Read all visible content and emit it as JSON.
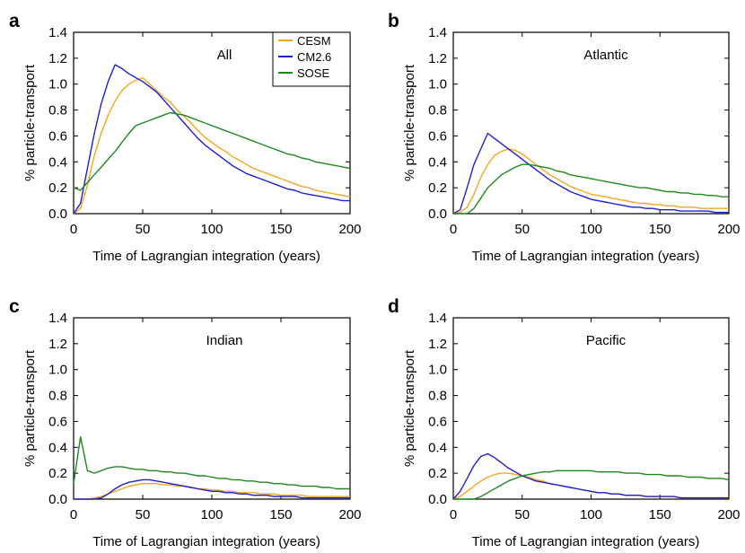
{
  "chart_data": [
    {
      "type": "line",
      "panel_letter": "a",
      "title": "All",
      "xlabel": "Time of Lagrangian integration (years)",
      "ylabel": "% particle-transport",
      "xlim": [
        0,
        200
      ],
      "ylim": [
        0,
        1.4
      ],
      "xticks": [
        0,
        50,
        100,
        150,
        200
      ],
      "yticks": [
        0.0,
        0.2,
        0.4,
        0.6,
        0.8,
        1.0,
        1.2,
        1.4
      ],
      "grid": false,
      "legend": "top-right",
      "x": [
        0,
        5,
        10,
        15,
        20,
        25,
        30,
        35,
        40,
        45,
        50,
        55,
        60,
        65,
        70,
        75,
        80,
        85,
        90,
        95,
        100,
        105,
        110,
        115,
        120,
        125,
        130,
        135,
        140,
        145,
        150,
        155,
        160,
        165,
        170,
        175,
        180,
        185,
        190,
        195,
        200
      ],
      "series": [
        {
          "name": "CESM",
          "color": "#f5a623",
          "values": [
            0.0,
            0.04,
            0.22,
            0.45,
            0.62,
            0.76,
            0.87,
            0.95,
            1.0,
            1.03,
            1.05,
            1.0,
            0.95,
            0.9,
            0.86,
            0.8,
            0.75,
            0.7,
            0.64,
            0.59,
            0.55,
            0.51,
            0.48,
            0.44,
            0.41,
            0.38,
            0.35,
            0.33,
            0.31,
            0.29,
            0.27,
            0.25,
            0.23,
            0.21,
            0.2,
            0.18,
            0.17,
            0.16,
            0.15,
            0.14,
            0.13
          ]
        },
        {
          "name": "CM2.6",
          "color": "#1f1fd0",
          "values": [
            0.0,
            0.08,
            0.35,
            0.62,
            0.85,
            1.02,
            1.15,
            1.12,
            1.08,
            1.05,
            1.02,
            0.98,
            0.94,
            0.88,
            0.82,
            0.76,
            0.7,
            0.64,
            0.58,
            0.53,
            0.49,
            0.45,
            0.41,
            0.37,
            0.34,
            0.31,
            0.29,
            0.27,
            0.25,
            0.23,
            0.21,
            0.19,
            0.18,
            0.16,
            0.15,
            0.14,
            0.13,
            0.12,
            0.11,
            0.1,
            0.1
          ]
        },
        {
          "name": "SOSE",
          "color": "#1e8a1e",
          "values": [
            0.2,
            0.18,
            0.24,
            0.3,
            0.36,
            0.42,
            0.48,
            0.55,
            0.62,
            0.68,
            0.7,
            0.72,
            0.74,
            0.76,
            0.78,
            0.77,
            0.76,
            0.74,
            0.72,
            0.7,
            0.68,
            0.66,
            0.64,
            0.62,
            0.6,
            0.58,
            0.56,
            0.54,
            0.52,
            0.5,
            0.48,
            0.46,
            0.45,
            0.43,
            0.42,
            0.4,
            0.39,
            0.38,
            0.37,
            0.36,
            0.35
          ]
        }
      ]
    },
    {
      "type": "line",
      "panel_letter": "b",
      "title": "Atlantic",
      "xlabel": "Time of Lagrangian integration (years)",
      "ylabel": "% particle-transport",
      "xlim": [
        0,
        200
      ],
      "ylim": [
        0,
        1.4
      ],
      "xticks": [
        0,
        50,
        100,
        150,
        200
      ],
      "yticks": [
        0.0,
        0.2,
        0.4,
        0.6,
        0.8,
        1.0,
        1.2,
        1.4
      ],
      "grid": false,
      "x": [
        0,
        5,
        10,
        15,
        20,
        25,
        30,
        35,
        40,
        45,
        50,
        55,
        60,
        65,
        70,
        75,
        80,
        85,
        90,
        95,
        100,
        105,
        110,
        115,
        120,
        125,
        130,
        135,
        140,
        145,
        150,
        155,
        160,
        165,
        170,
        175,
        180,
        185,
        190,
        195,
        200
      ],
      "series": [
        {
          "name": "CESM",
          "color": "#f5a623",
          "values": [
            0.0,
            0.01,
            0.05,
            0.15,
            0.28,
            0.38,
            0.45,
            0.48,
            0.5,
            0.49,
            0.46,
            0.42,
            0.38,
            0.34,
            0.3,
            0.27,
            0.24,
            0.21,
            0.19,
            0.17,
            0.15,
            0.14,
            0.13,
            0.12,
            0.11,
            0.1,
            0.09,
            0.08,
            0.08,
            0.07,
            0.07,
            0.06,
            0.06,
            0.05,
            0.05,
            0.05,
            0.04,
            0.04,
            0.04,
            0.04,
            0.04
          ]
        },
        {
          "name": "CM2.6",
          "color": "#1f1fd0",
          "values": [
            0.0,
            0.03,
            0.2,
            0.38,
            0.5,
            0.62,
            0.58,
            0.54,
            0.5,
            0.46,
            0.42,
            0.38,
            0.34,
            0.3,
            0.26,
            0.23,
            0.2,
            0.17,
            0.15,
            0.13,
            0.11,
            0.1,
            0.09,
            0.08,
            0.07,
            0.06,
            0.05,
            0.05,
            0.04,
            0.04,
            0.03,
            0.03,
            0.03,
            0.02,
            0.02,
            0.02,
            0.02,
            0.02,
            0.01,
            0.01,
            0.01
          ]
        },
        {
          "name": "SOSE",
          "color": "#1e8a1e",
          "values": [
            0.0,
            0.0,
            0.0,
            0.04,
            0.12,
            0.2,
            0.25,
            0.3,
            0.33,
            0.36,
            0.38,
            0.38,
            0.37,
            0.36,
            0.35,
            0.33,
            0.32,
            0.3,
            0.29,
            0.28,
            0.27,
            0.26,
            0.25,
            0.24,
            0.23,
            0.22,
            0.21,
            0.2,
            0.2,
            0.19,
            0.18,
            0.17,
            0.17,
            0.16,
            0.16,
            0.15,
            0.15,
            0.14,
            0.14,
            0.13,
            0.13
          ]
        }
      ]
    },
    {
      "type": "line",
      "panel_letter": "c",
      "title": "Indian",
      "xlabel": "Time of Lagrangian integration (years)",
      "ylabel": "% particle-transport",
      "xlim": [
        0,
        200
      ],
      "ylim": [
        0,
        1.4
      ],
      "xticks": [
        0,
        50,
        100,
        150,
        200
      ],
      "yticks": [
        0.0,
        0.2,
        0.4,
        0.6,
        0.8,
        1.0,
        1.2,
        1.4
      ],
      "grid": false,
      "x": [
        0,
        5,
        10,
        15,
        20,
        25,
        30,
        35,
        40,
        45,
        50,
        55,
        60,
        65,
        70,
        75,
        80,
        85,
        90,
        95,
        100,
        105,
        110,
        115,
        120,
        125,
        130,
        135,
        140,
        145,
        150,
        155,
        160,
        165,
        170,
        175,
        180,
        185,
        190,
        195,
        200
      ],
      "series": [
        {
          "name": "CESM",
          "color": "#f5a623",
          "values": [
            0.0,
            0.0,
            0.0,
            0.01,
            0.02,
            0.04,
            0.06,
            0.08,
            0.1,
            0.11,
            0.12,
            0.12,
            0.12,
            0.11,
            0.11,
            0.1,
            0.1,
            0.09,
            0.08,
            0.08,
            0.07,
            0.07,
            0.06,
            0.06,
            0.05,
            0.05,
            0.05,
            0.04,
            0.04,
            0.04,
            0.03,
            0.03,
            0.03,
            0.03,
            0.02,
            0.02,
            0.02,
            0.02,
            0.02,
            0.02,
            0.02
          ]
        },
        {
          "name": "CM2.6",
          "color": "#1f1fd0",
          "values": [
            0.0,
            0.0,
            0.0,
            0.0,
            0.01,
            0.04,
            0.08,
            0.11,
            0.13,
            0.14,
            0.15,
            0.15,
            0.14,
            0.13,
            0.12,
            0.11,
            0.1,
            0.09,
            0.08,
            0.07,
            0.06,
            0.06,
            0.05,
            0.05,
            0.04,
            0.04,
            0.03,
            0.03,
            0.03,
            0.02,
            0.02,
            0.02,
            0.02,
            0.01,
            0.01,
            0.01,
            0.01,
            0.01,
            0.01,
            0.01,
            0.01
          ]
        },
        {
          "name": "SOSE",
          "color": "#1e8a1e",
          "values": [
            0.12,
            0.48,
            0.22,
            0.2,
            0.22,
            0.24,
            0.25,
            0.25,
            0.24,
            0.23,
            0.23,
            0.22,
            0.22,
            0.21,
            0.21,
            0.2,
            0.2,
            0.19,
            0.18,
            0.18,
            0.17,
            0.16,
            0.16,
            0.15,
            0.15,
            0.14,
            0.14,
            0.13,
            0.13,
            0.12,
            0.12,
            0.11,
            0.11,
            0.1,
            0.1,
            0.1,
            0.09,
            0.09,
            0.08,
            0.08,
            0.08
          ]
        }
      ]
    },
    {
      "type": "line",
      "panel_letter": "d",
      "title": "Pacific",
      "xlabel": "Time of Lagrangian integration (years)",
      "ylabel": "% particle-transport",
      "xlim": [
        0,
        200
      ],
      "ylim": [
        0,
        1.4
      ],
      "xticks": [
        0,
        50,
        100,
        150,
        200
      ],
      "yticks": [
        0.0,
        0.2,
        0.4,
        0.6,
        0.8,
        1.0,
        1.2,
        1.4
      ],
      "grid": false,
      "x": [
        0,
        5,
        10,
        15,
        20,
        25,
        30,
        35,
        40,
        45,
        50,
        55,
        60,
        65,
        70,
        75,
        80,
        85,
        90,
        95,
        100,
        105,
        110,
        115,
        120,
        125,
        130,
        135,
        140,
        145,
        150,
        155,
        160,
        165,
        170,
        175,
        180,
        185,
        190,
        195,
        200
      ],
      "series": [
        {
          "name": "CESM",
          "color": "#f5a623",
          "values": [
            0.0,
            0.02,
            0.06,
            0.1,
            0.14,
            0.17,
            0.19,
            0.2,
            0.2,
            0.19,
            0.18,
            0.17,
            0.15,
            0.14,
            0.12,
            0.11,
            0.1,
            0.09,
            0.08,
            0.07,
            0.06,
            0.05,
            0.05,
            0.04,
            0.04,
            0.03,
            0.03,
            0.03,
            0.02,
            0.02,
            0.02,
            0.02,
            0.02,
            0.01,
            0.01,
            0.01,
            0.01,
            0.01,
            0.01,
            0.01,
            0.01
          ]
        },
        {
          "name": "CM2.6",
          "color": "#1f1fd0",
          "values": [
            0.0,
            0.06,
            0.16,
            0.26,
            0.33,
            0.35,
            0.32,
            0.28,
            0.24,
            0.21,
            0.18,
            0.16,
            0.14,
            0.13,
            0.12,
            0.11,
            0.1,
            0.09,
            0.08,
            0.07,
            0.06,
            0.05,
            0.05,
            0.04,
            0.04,
            0.03,
            0.03,
            0.03,
            0.02,
            0.02,
            0.02,
            0.02,
            0.02,
            0.01,
            0.01,
            0.01,
            0.01,
            0.01,
            0.01,
            0.01,
            0.01
          ]
        },
        {
          "name": "SOSE",
          "color": "#1e8a1e",
          "values": [
            0.0,
            0.0,
            0.0,
            0.0,
            0.02,
            0.05,
            0.08,
            0.11,
            0.14,
            0.16,
            0.18,
            0.19,
            0.2,
            0.21,
            0.21,
            0.22,
            0.22,
            0.22,
            0.22,
            0.22,
            0.22,
            0.21,
            0.21,
            0.21,
            0.21,
            0.2,
            0.2,
            0.2,
            0.19,
            0.19,
            0.19,
            0.18,
            0.18,
            0.18,
            0.17,
            0.17,
            0.17,
            0.16,
            0.16,
            0.16,
            0.15
          ]
        }
      ]
    }
  ]
}
